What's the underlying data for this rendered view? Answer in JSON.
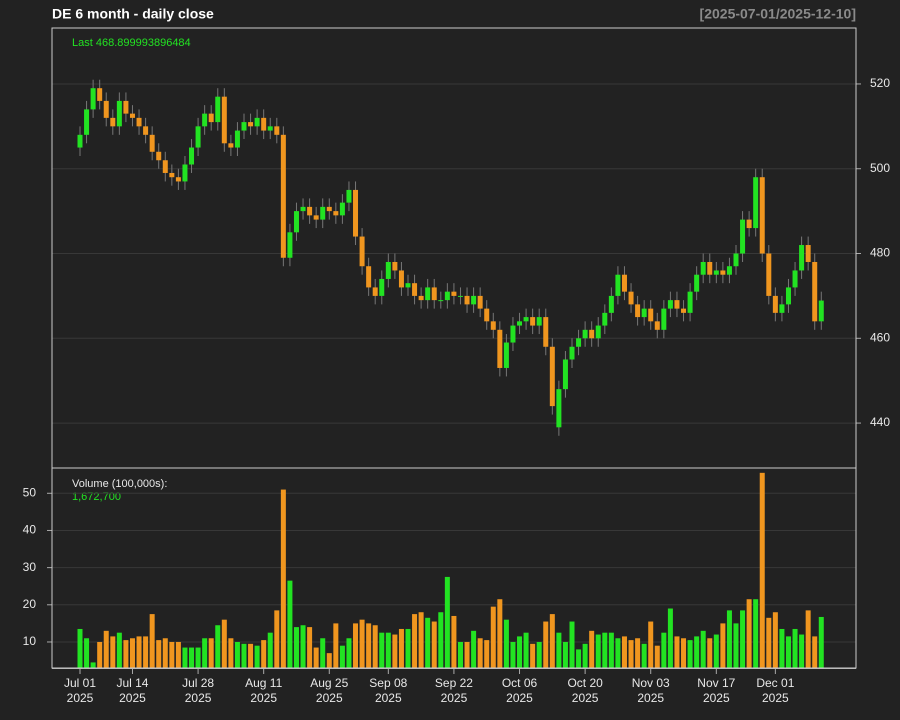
{
  "chart_data": {
    "type": "candlestick",
    "title": "DE  6 month - daily close",
    "date_range": "[2025-07-01/2025-12-10]",
    "last_label": "Last 468.899993896484",
    "up_color": "#22e322",
    "down_color": "#f0961f",
    "grid": true,
    "categories": [
      "Jul 01 2025",
      null,
      null,
      null,
      null,
      null,
      null,
      null,
      "Jul 14 2025",
      null,
      null,
      null,
      null,
      null,
      null,
      null,
      null,
      null,
      "Jul 28 2025",
      null,
      null,
      null,
      null,
      null,
      null,
      null,
      null,
      null,
      "Aug 11 2025",
      null,
      null,
      null,
      null,
      null,
      null,
      null,
      null,
      null,
      "Aug 25 2025",
      null,
      null,
      null,
      null,
      null,
      null,
      null,
      null,
      "Sep 08 2025",
      null,
      null,
      null,
      null,
      null,
      null,
      null,
      null,
      null,
      "Sep 22 2025",
      null,
      null,
      null,
      null,
      null,
      null,
      null,
      null,
      null,
      "Oct 06 2025",
      null,
      null,
      null,
      null,
      null,
      null,
      null,
      null,
      null,
      "Oct 20 2025",
      null,
      null,
      null,
      null,
      null,
      null,
      null,
      null,
      null,
      "Nov 03 2025",
      null,
      null,
      null,
      null,
      null,
      null,
      null,
      null,
      null,
      "Nov 17 2025",
      null,
      null,
      null,
      null,
      null,
      null,
      null,
      null,
      "Dec 01 2025",
      null,
      null,
      null,
      null,
      null,
      null,
      null
    ],
    "ohlc": [
      [
        505,
        510,
        503,
        508
      ],
      [
        508,
        516,
        506,
        514
      ],
      [
        514,
        521,
        512,
        519
      ],
      [
        519,
        521,
        514,
        516
      ],
      [
        516,
        518,
        510,
        512
      ],
      [
        512,
        514,
        508,
        510
      ],
      [
        510,
        518,
        508,
        516
      ],
      [
        516,
        518,
        511,
        513
      ],
      [
        513,
        515,
        510,
        512
      ],
      [
        512,
        514,
        508,
        510
      ],
      [
        510,
        512,
        506,
        508
      ],
      [
        508,
        510,
        502,
        504
      ],
      [
        504,
        506,
        500,
        502
      ],
      [
        502,
        504,
        497,
        499
      ],
      [
        499,
        501,
        496,
        498
      ],
      [
        498,
        500,
        495,
        497
      ],
      [
        497,
        503,
        495,
        501
      ],
      [
        501,
        507,
        499,
        505
      ],
      [
        505,
        512,
        503,
        510
      ],
      [
        510,
        515,
        508,
        513
      ],
      [
        513,
        515,
        509,
        511
      ],
      [
        511,
        519,
        509,
        517
      ],
      [
        517,
        519,
        504,
        506
      ],
      [
        506,
        508,
        503,
        505
      ],
      [
        505,
        511,
        503,
        509
      ],
      [
        509,
        513,
        507,
        511
      ],
      [
        511,
        513,
        508,
        510
      ],
      [
        510,
        514,
        508,
        512
      ],
      [
        512,
        514,
        507,
        509
      ],
      [
        509,
        512,
        507,
        510
      ],
      [
        510,
        512,
        506,
        508
      ],
      [
        508,
        510,
        477,
        479
      ],
      [
        479,
        487,
        477,
        485
      ],
      [
        485,
        492,
        483,
        490
      ],
      [
        490,
        493,
        488,
        491
      ],
      [
        491,
        493,
        487,
        489
      ],
      [
        489,
        491,
        486,
        488
      ],
      [
        488,
        493,
        486,
        491
      ],
      [
        491,
        493,
        488,
        490
      ],
      [
        490,
        492,
        487,
        489
      ],
      [
        489,
        494,
        487,
        492
      ],
      [
        492,
        497,
        490,
        495
      ],
      [
        495,
        497,
        482,
        484
      ],
      [
        484,
        486,
        475,
        477
      ],
      [
        477,
        479,
        470,
        472
      ],
      [
        472,
        474,
        468,
        470
      ],
      [
        470,
        476,
        468,
        474
      ],
      [
        474,
        480,
        472,
        478
      ],
      [
        478,
        480,
        474,
        476
      ],
      [
        476,
        478,
        470,
        472
      ],
      [
        472,
        475,
        470,
        473
      ],
      [
        473,
        475,
        468,
        470
      ],
      [
        470,
        472,
        467,
        469
      ],
      [
        469,
        474,
        467,
        472
      ],
      [
        472,
        474,
        467,
        469
      ],
      [
        469,
        471,
        467,
        469
      ],
      [
        469,
        473,
        467,
        471
      ],
      [
        471,
        473,
        468,
        470
      ],
      [
        470,
        472,
        468,
        470
      ],
      [
        470,
        472,
        466,
        468
      ],
      [
        468,
        472,
        466,
        470
      ],
      [
        470,
        472,
        465,
        467
      ],
      [
        467,
        469,
        462,
        464
      ],
      [
        464,
        466,
        460,
        462
      ],
      [
        462,
        464,
        451,
        453
      ],
      [
        453,
        461,
        451,
        459
      ],
      [
        459,
        465,
        457,
        463
      ],
      [
        463,
        466,
        461,
        464
      ],
      [
        464,
        467,
        462,
        465
      ],
      [
        465,
        467,
        461,
        463
      ],
      [
        463,
        467,
        461,
        465
      ],
      [
        465,
        467,
        456,
        458
      ],
      [
        458,
        460,
        442,
        444
      ],
      [
        439,
        450,
        437,
        448
      ],
      [
        448,
        457,
        446,
        455
      ],
      [
        455,
        460,
        453,
        458
      ],
      [
        458,
        462,
        456,
        460
      ],
      [
        460,
        464,
        458,
        462
      ],
      [
        462,
        464,
        458,
        460
      ],
      [
        460,
        465,
        458,
        463
      ],
      [
        463,
        468,
        461,
        466
      ],
      [
        466,
        472,
        464,
        470
      ],
      [
        470,
        477,
        468,
        475
      ],
      [
        475,
        477,
        469,
        471
      ],
      [
        471,
        473,
        466,
        468
      ],
      [
        468,
        470,
        463,
        465
      ],
      [
        465,
        469,
        463,
        467
      ],
      [
        467,
        469,
        462,
        464
      ],
      [
        464,
        466,
        460,
        462
      ],
      [
        462,
        469,
        460,
        467
      ],
      [
        467,
        471,
        465,
        469
      ],
      [
        469,
        471,
        465,
        467
      ],
      [
        467,
        469,
        464,
        466
      ],
      [
        466,
        473,
        464,
        471
      ],
      [
        471,
        477,
        469,
        475
      ],
      [
        475,
        480,
        473,
        478
      ],
      [
        478,
        480,
        473,
        475
      ],
      [
        475,
        478,
        473,
        476
      ],
      [
        476,
        478,
        473,
        475
      ],
      [
        475,
        479,
        473,
        477
      ],
      [
        477,
        482,
        475,
        480
      ],
      [
        480,
        490,
        478,
        488
      ],
      [
        488,
        490,
        484,
        486
      ],
      [
        486,
        500,
        484,
        498
      ],
      [
        498,
        500,
        478,
        480
      ],
      [
        480,
        482,
        468,
        470
      ],
      [
        470,
        472,
        464,
        466
      ],
      [
        466,
        470,
        464,
        468
      ],
      [
        468,
        474,
        466,
        472
      ],
      [
        472,
        478,
        470,
        476
      ],
      [
        476,
        484,
        474,
        482
      ],
      [
        482,
        484,
        476,
        478
      ],
      [
        478,
        480,
        462,
        464
      ],
      [
        464,
        471,
        462,
        468.899993896484
      ]
    ],
    "ylim": [
      429.4,
      533.2
    ],
    "yticks": [
      440,
      460,
      480,
      500,
      520
    ],
    "volume_title": "Volume (100,000s):",
    "volume_last_label": "1,672,700",
    "volumes": [
      13.5,
      11,
      4.5,
      10,
      13,
      11.5,
      12.5,
      10.5,
      11,
      11.5,
      11.5,
      17.5,
      10.5,
      11,
      10,
      10,
      8.5,
      8.5,
      8.5,
      11,
      11,
      14.5,
      16,
      11,
      10,
      9.5,
      9.5,
      9,
      10.5,
      12.5,
      18.5,
      51,
      26.5,
      14,
      14.5,
      14,
      8.5,
      11,
      7,
      15,
      9,
      11,
      15,
      16,
      15,
      14.5,
      12.5,
      12.5,
      12,
      13.5,
      13.5,
      17.5,
      18,
      16.5,
      15.5,
      18,
      27.5,
      17,
      10,
      10,
      13,
      11,
      10.5,
      19.5,
      21.5,
      16,
      10,
      11.5,
      12.5,
      9.5,
      10,
      15.5,
      17.5,
      12.5,
      10,
      15.5,
      8,
      9.5,
      13,
      12,
      12.5,
      12.5,
      11,
      11.5,
      10.5,
      11,
      9.5,
      15.5,
      9,
      12.5,
      19,
      11.5,
      11,
      10.5,
      11.5,
      13,
      11,
      12,
      15,
      18.5,
      15,
      18.5,
      21.5,
      21.5,
      55.5,
      16.5,
      18,
      13.5,
      11.5,
      13.5,
      12,
      18.5,
      11.5,
      16.727
    ],
    "vlim": [
      3,
      56.8
    ],
    "vticks": [
      10,
      20,
      30,
      40,
      50
    ]
  }
}
